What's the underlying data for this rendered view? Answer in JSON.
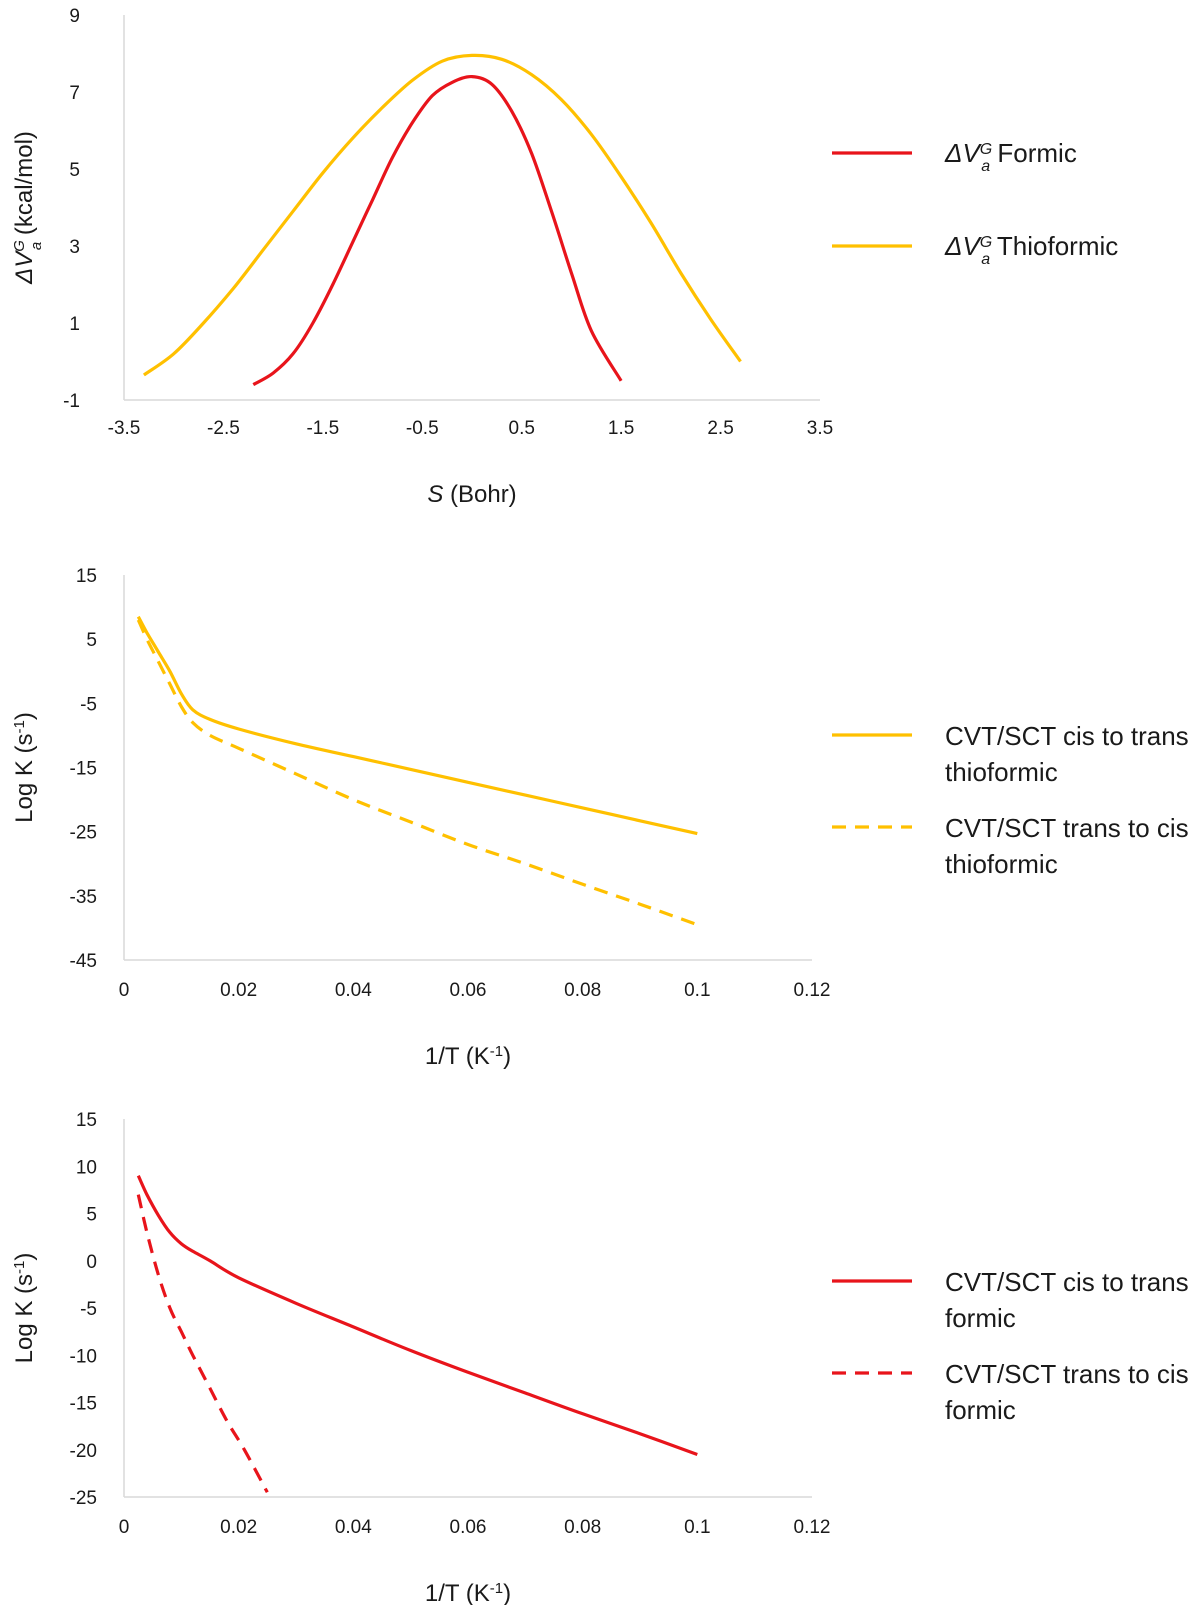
{
  "chart_data": [
    {
      "type": "line",
      "xlabel_var": "S",
      "xlabel_unit": " (Bohr)",
      "ylabel_prefix": "ΔV",
      "ylabel_sup": "G",
      "ylabel_sub": "a",
      "ylabel_unit": " (kcal/mol)",
      "xlim": [
        -3.5,
        3.5
      ],
      "ylim": [
        -1,
        9
      ],
      "xticks": [
        "-3.5",
        "-2.5",
        "-1.5",
        "-0.5",
        "0.5",
        "1.5",
        "2.5",
        "3.5"
      ],
      "yticks": [
        "-1",
        "1",
        "3",
        "5",
        "7",
        "9"
      ],
      "legend_position": "right",
      "series": [
        {
          "name": "Formic",
          "legend_prefix": "ΔV",
          "legend_sup": "G",
          "legend_sub": "a",
          "legend_text": " Formic",
          "color": "#e8141b",
          "dash": "solid",
          "x": [
            -2.2,
            -2.0,
            -1.8,
            -1.6,
            -1.4,
            -1.2,
            -1.0,
            -0.8,
            -0.6,
            -0.4,
            -0.2,
            0.0,
            0.2,
            0.4,
            0.6,
            0.8,
            1.0,
            1.2,
            1.5
          ],
          "y": [
            -0.6,
            -0.3,
            0.2,
            1.0,
            2.0,
            3.1,
            4.2,
            5.3,
            6.2,
            6.9,
            7.25,
            7.4,
            7.2,
            6.5,
            5.4,
            3.9,
            2.3,
            0.8,
            -0.5
          ]
        },
        {
          "name": "Thioformic",
          "legend_prefix": "ΔV",
          "legend_sup": "G",
          "legend_sub": "a",
          "legend_text": " Thioformic",
          "color": "#ffc000",
          "dash": "solid",
          "x": [
            -3.3,
            -3.0,
            -2.7,
            -2.4,
            -2.1,
            -1.8,
            -1.5,
            -1.2,
            -0.9,
            -0.6,
            -0.3,
            0.0,
            0.3,
            0.6,
            0.9,
            1.2,
            1.5,
            1.8,
            2.1,
            2.4,
            2.7
          ],
          "y": [
            -0.35,
            0.2,
            1.0,
            1.9,
            2.9,
            3.9,
            4.9,
            5.8,
            6.6,
            7.3,
            7.8,
            7.95,
            7.85,
            7.45,
            6.8,
            5.9,
            4.8,
            3.6,
            2.3,
            1.1,
            0.0
          ]
        }
      ]
    },
    {
      "type": "line",
      "xlabel": "1/T (K",
      "xlabel_sup": "-1",
      "xlabel_end": ")",
      "ylabel": "Log K (s",
      "ylabel_sup": "-1",
      "ylabel_end": ")",
      "xlim": [
        0,
        0.12
      ],
      "ylim": [
        -45,
        15
      ],
      "xticks": [
        "0",
        "0.02",
        "0.04",
        "0.06",
        "0.08",
        "0.1",
        "0.12"
      ],
      "yticks": [
        "-45",
        "-35",
        "-25",
        "-15",
        "-5",
        "5",
        "15"
      ],
      "legend_position": "right",
      "series": [
        {
          "name": "CVT/SCT cis to trans thioformic",
          "legend_line1": "CVT/SCT cis to trans",
          "legend_line2": "thioformic",
          "color": "#ffc000",
          "dash": "solid",
          "x": [
            0.0025,
            0.004,
            0.006,
            0.008,
            0.01,
            0.012,
            0.015,
            0.02,
            0.03,
            0.04,
            0.05,
            0.06,
            0.07,
            0.08,
            0.09,
            0.1
          ],
          "y": [
            8.5,
            6.0,
            3.0,
            0.0,
            -3.5,
            -6.0,
            -7.5,
            -9.0,
            -11.3,
            -13.3,
            -15.3,
            -17.3,
            -19.3,
            -21.3,
            -23.3,
            -25.3
          ]
        },
        {
          "name": "CVT/SCT trans to cis thioformic",
          "legend_line1": "CVT/SCT trans to cis",
          "legend_line2": "thioformic",
          "color": "#ffc000",
          "dash": "dashed",
          "x": [
            0.0025,
            0.004,
            0.006,
            0.008,
            0.01,
            0.012,
            0.015,
            0.02,
            0.03,
            0.04,
            0.05,
            0.06,
            0.07,
            0.08,
            0.09,
            0.1
          ],
          "y": [
            8.0,
            5.0,
            1.5,
            -2.0,
            -5.5,
            -8.0,
            -10.0,
            -12.0,
            -16.0,
            -20.0,
            -23.5,
            -27.0,
            -30.0,
            -33.2,
            -36.3,
            -39.5
          ]
        }
      ]
    },
    {
      "type": "line",
      "xlabel": "1/T (K",
      "xlabel_sup": "-1",
      "xlabel_end": ")",
      "ylabel": "Log K (s",
      "ylabel_sup": "-1",
      "ylabel_end": ")",
      "xlim": [
        0,
        0.12
      ],
      "ylim": [
        -25,
        15
      ],
      "xticks": [
        "0",
        "0.02",
        "0.04",
        "0.06",
        "0.08",
        "0.1",
        "0.12"
      ],
      "yticks": [
        "-25",
        "-20",
        "-15",
        "-10",
        "-5",
        "0",
        "5",
        "10",
        "15"
      ],
      "legend_position": "right",
      "series": [
        {
          "name": "CVT/SCT cis to trans formic",
          "legend_line1": "CVT/SCT cis to trans",
          "legend_line2": "formic",
          "color": "#e8141b",
          "dash": "solid",
          "x": [
            0.0025,
            0.004,
            0.006,
            0.008,
            0.01,
            0.012,
            0.015,
            0.02,
            0.03,
            0.04,
            0.05,
            0.06,
            0.07,
            0.08,
            0.09,
            0.1
          ],
          "y": [
            9.0,
            7.0,
            4.8,
            3.0,
            1.8,
            1.0,
            0.0,
            -1.8,
            -4.5,
            -7.0,
            -9.5,
            -11.8,
            -14.0,
            -16.2,
            -18.3,
            -20.5
          ]
        },
        {
          "name": "CVT/SCT trans to cis formic",
          "legend_line1": "CVT/SCT trans to cis",
          "legend_line2": "formic",
          "color": "#e8141b",
          "dash": "dashed",
          "x": [
            0.0025,
            0.004,
            0.006,
            0.008,
            0.01,
            0.012,
            0.015,
            0.018,
            0.021,
            0.025
          ],
          "y": [
            7.0,
            3.0,
            -1.5,
            -5.0,
            -7.5,
            -10.0,
            -13.5,
            -17.0,
            -20.0,
            -24.5
          ]
        }
      ]
    }
  ]
}
